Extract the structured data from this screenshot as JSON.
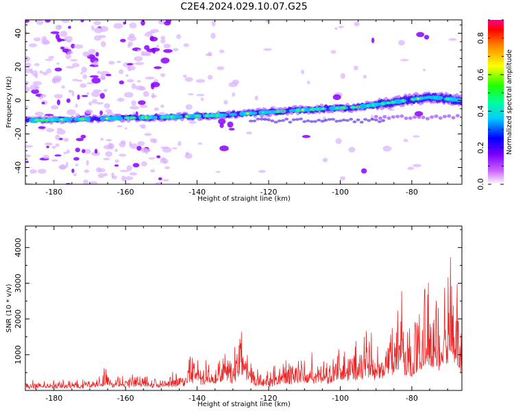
{
  "title": "C2E4.2024.029.10.07.G25",
  "chart_data": [
    {
      "type": "heatmap",
      "xlabel": "Height of straight line (km)",
      "ylabel": "Frequency (Hz)",
      "xlim": [
        -188,
        -66
      ],
      "ylim": [
        -50,
        48
      ],
      "xticks": [
        "-180",
        "-160",
        "-140",
        "-120",
        "-100",
        "-80"
      ],
      "yticks": [
        "-40",
        "-20",
        "0",
        "20",
        "40"
      ],
      "ridge": [
        {
          "x": -188,
          "y": -12
        },
        {
          "x": -170,
          "y": -11
        },
        {
          "x": -150,
          "y": -10
        },
        {
          "x": -135,
          "y": -9
        },
        {
          "x": -120,
          "y": -7
        },
        {
          "x": -105,
          "y": -5
        },
        {
          "x": -95,
          "y": -4
        },
        {
          "x": -85,
          "y": -1
        },
        {
          "x": -75,
          "y": 2
        },
        {
          "x": -66,
          "y": 0
        }
      ],
      "colorbar": {
        "label": "Normalized spectral amplitude",
        "range": [
          0,
          0.9
        ],
        "ticks": [
          "0.0",
          "0.2",
          "0.4",
          "0.6",
          "0.8"
        ]
      }
    },
    {
      "type": "line",
      "xlabel": "Height of straight line (km)",
      "ylabel": "SNR (10 * v/v)",
      "xlim": [
        -188,
        -66
      ],
      "ylim": [
        0,
        4600
      ],
      "xticks": [
        "-180",
        "-160",
        "-140",
        "-120",
        "-100",
        "-80"
      ],
      "yticks": [
        "1000",
        "2000",
        "3000",
        "4000"
      ],
      "color": "#ee2222",
      "series": [
        {
          "name": "SNR",
          "x": [
            -188,
            -184,
            -180,
            -176,
            -172,
            -168,
            -166,
            -164,
            -160,
            -156,
            -152,
            -148,
            -144,
            -142,
            -140,
            -136,
            -132,
            -130,
            -128,
            -126,
            -124,
            -122,
            -120,
            -116,
            -112,
            -108,
            -104,
            -100,
            -96,
            -92,
            -90,
            -88,
            -86,
            -84,
            -83,
            -82,
            -80,
            -78,
            -76,
            -74,
            -72,
            -70,
            -69,
            -68,
            -66
          ],
          "values": [
            150,
            180,
            190,
            180,
            220,
            260,
            450,
            280,
            300,
            350,
            240,
            300,
            450,
            800,
            600,
            650,
            900,
            600,
            1500,
            1000,
            500,
            300,
            400,
            600,
            700,
            750,
            700,
            950,
            1000,
            1300,
            900,
            1100,
            1500,
            1900,
            3000,
            1500,
            1500,
            1800,
            2800,
            2100,
            2200,
            2900,
            3200,
            2600,
            1400
          ]
        }
      ]
    }
  ]
}
